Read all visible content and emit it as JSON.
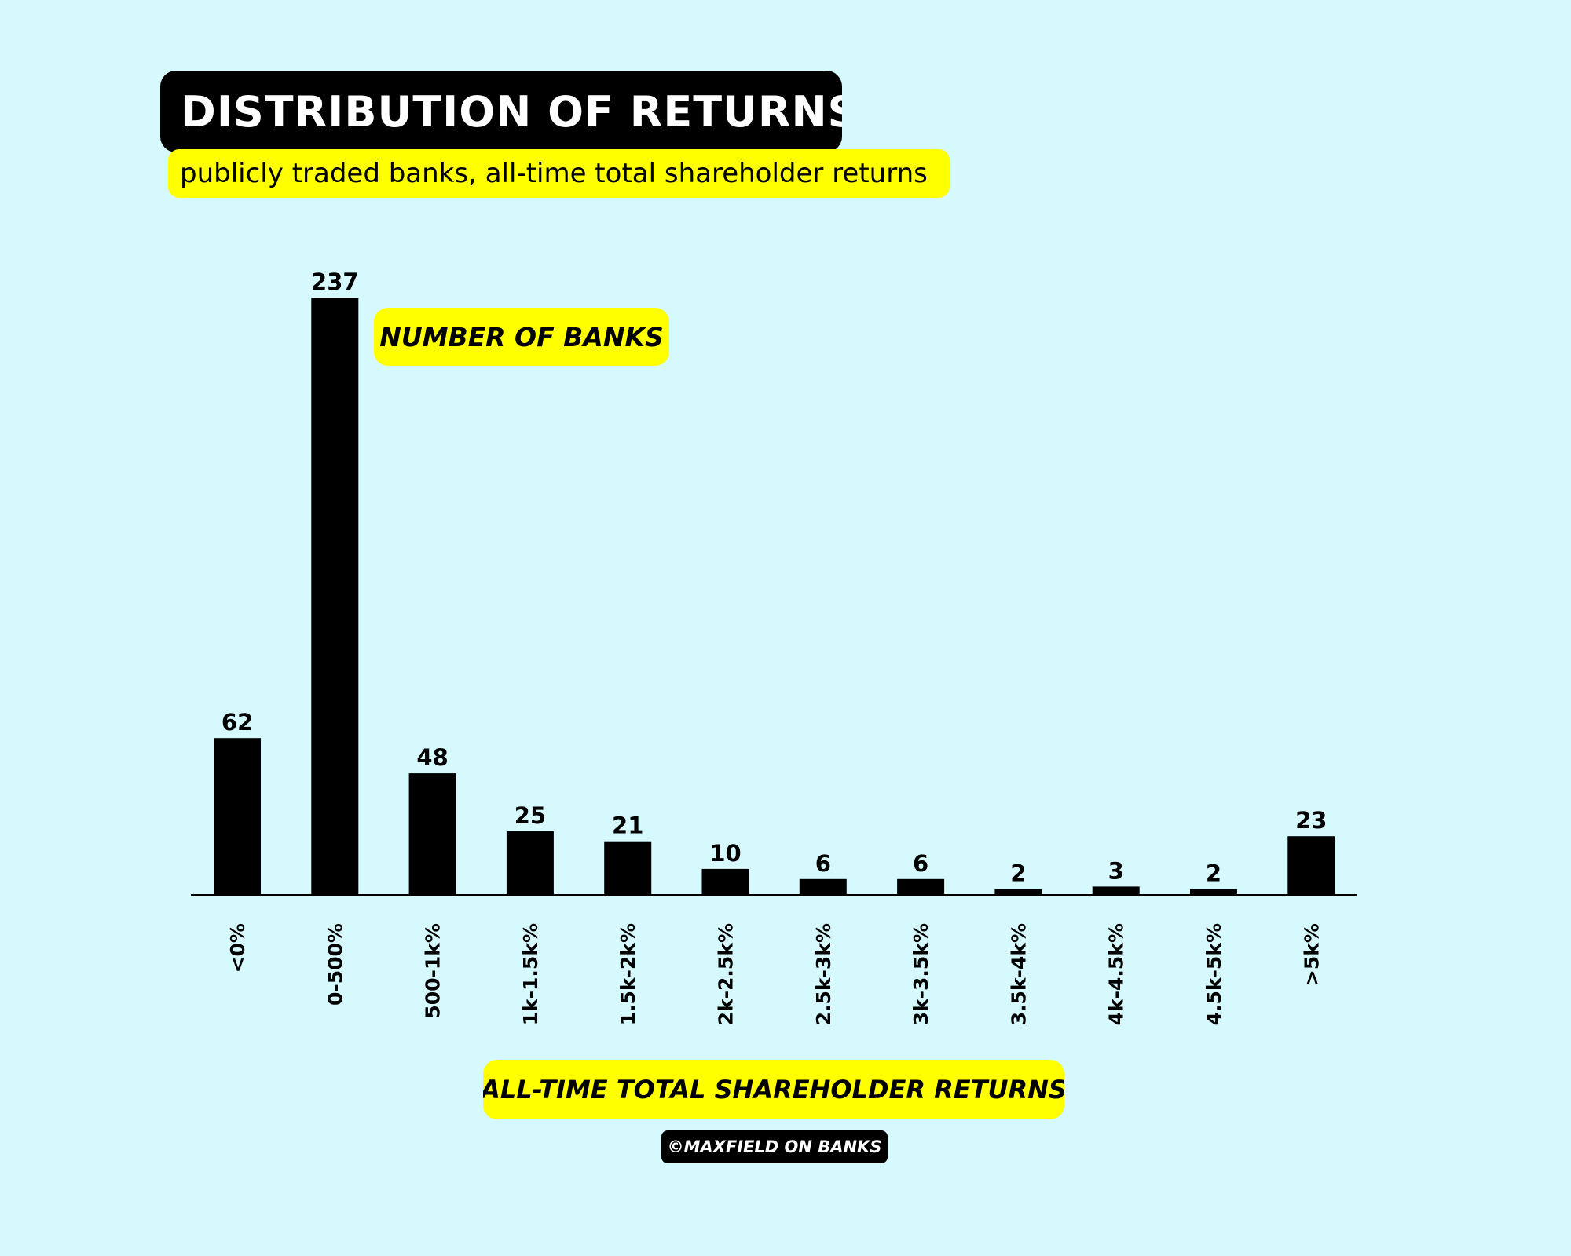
{
  "header": {
    "title": "DISTRIBUTION OF RETURNS",
    "subtitle": "publicly traded banks, all-time total shareholder returns"
  },
  "footer": {
    "credit": "©MAXFIELD ON BANKS"
  },
  "colors": {
    "background": "#d6f9fd",
    "bar": "#000000",
    "highlight": "#ffff00",
    "title_bg": "#000000",
    "title_text": "#ffffff"
  },
  "chart_data": {
    "type": "bar",
    "title": "DISTRIBUTION OF RETURNS",
    "subtitle": "publicly traded banks, all-time total shareholder returns",
    "xlabel": "ALL-TIME TOTAL SHAREHOLDER RETURNS",
    "ylabel": "NUMBER OF BANKS",
    "categories": [
      "<0%",
      "0-500%",
      "500-1k%",
      "1k-1.5k%",
      "1.5k-2k%",
      "2k-2.5k%",
      "2.5k-3k%",
      "3k-3.5k%",
      "3.5k-4k%",
      "4k-4.5k%",
      "4.5k-5k%",
      ">5k%"
    ],
    "values": [
      62,
      237,
      48,
      25,
      21,
      10,
      6,
      6,
      2,
      3,
      2,
      23
    ],
    "ylim": [
      0,
      237
    ],
    "grid": false,
    "legend": "none",
    "data_labels": true,
    "tick_label_orientation": "vertical"
  }
}
